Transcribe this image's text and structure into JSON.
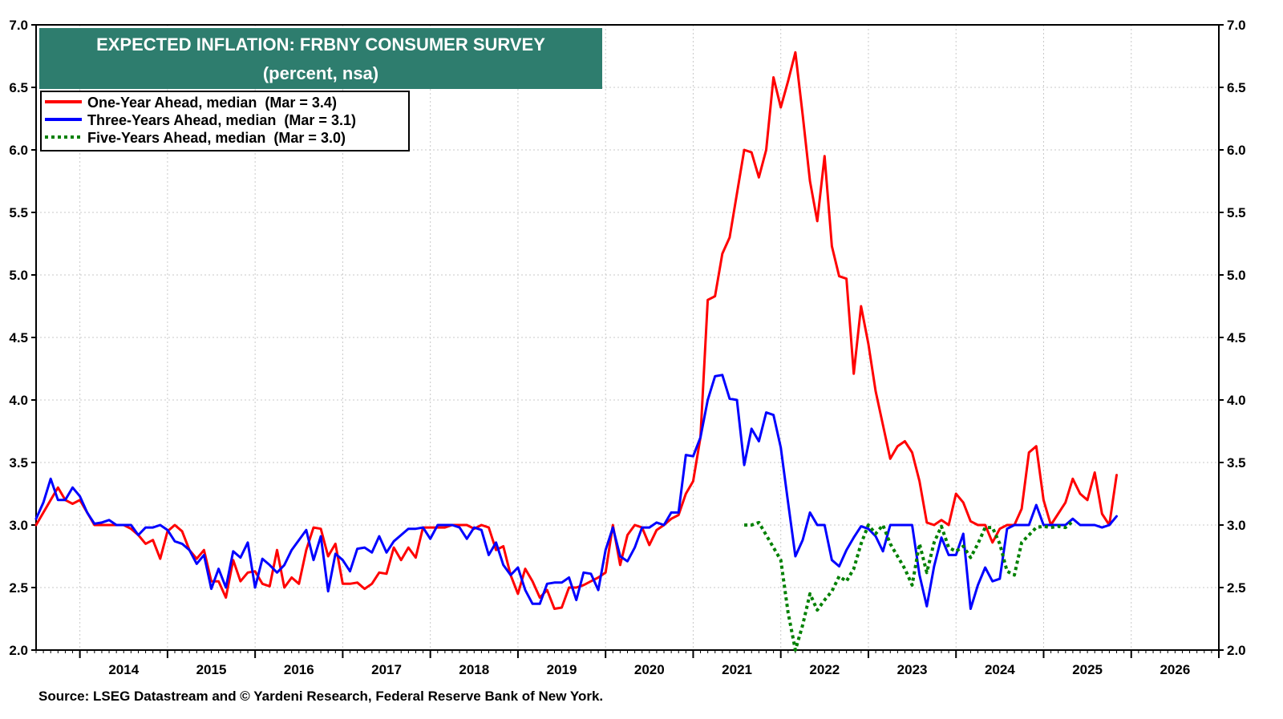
{
  "chart_data": {
    "type": "line",
    "title": "EXPECTED INFLATION: FRBNY CONSUMER SURVEY",
    "subtitle": "(percent, nsa)",
    "source": "Source: LSEG Datastream and © Yardeni Research, Federal Reserve Bank of New York.",
    "xlim": [
      2013.5,
      2027.0
    ],
    "ylim": [
      2.0,
      7.0
    ],
    "yticks": [
      "2.0",
      "2.5",
      "3.0",
      "3.5",
      "4.0",
      "4.5",
      "5.0",
      "5.5",
      "6.0",
      "6.5",
      "7.0"
    ],
    "xticks": [
      "2014",
      "2015",
      "2016",
      "2017",
      "2018",
      "2019",
      "2020",
      "2021",
      "2022",
      "2023",
      "2024",
      "2025",
      "2026"
    ],
    "grid": true,
    "legend_position": "top-left",
    "colors": {
      "title_bg": "#2e7d6e",
      "series1": "#ff0000",
      "series2": "#0000ff",
      "series3": "#008000"
    },
    "series": [
      {
        "name": "One-Year Ahead, median  (Mar = 3.4)",
        "style": "solid",
        "start": 2013.5,
        "step": 0.08333,
        "values": [
          3.0,
          3.1,
          3.2,
          3.3,
          3.2,
          3.17,
          3.2,
          3.1,
          3.0,
          3.0,
          3.0,
          3.0,
          3.0,
          2.97,
          2.92,
          2.85,
          2.88,
          2.73,
          2.95,
          3.0,
          2.95,
          2.8,
          2.73,
          2.8,
          2.55,
          2.55,
          2.42,
          2.72,
          2.55,
          2.62,
          2.63,
          2.53,
          2.51,
          2.8,
          2.5,
          2.58,
          2.53,
          2.8,
          2.98,
          2.97,
          2.75,
          2.85,
          2.53,
          2.53,
          2.54,
          2.49,
          2.53,
          2.62,
          2.61,
          2.82,
          2.72,
          2.82,
          2.74,
          2.98,
          2.98,
          2.98,
          2.98,
          3.0,
          3.0,
          3.0,
          2.97,
          3.0,
          2.98,
          2.8,
          2.83,
          2.6,
          2.45,
          2.65,
          2.55,
          2.42,
          2.48,
          2.33,
          2.34,
          2.5,
          2.5,
          2.52,
          2.55,
          2.58,
          2.62,
          3.0,
          2.68,
          2.92,
          3.0,
          2.98,
          2.84,
          2.96,
          3.0,
          3.05,
          3.08,
          3.25,
          3.35,
          3.7,
          4.8,
          4.83,
          5.17,
          5.3,
          5.65,
          6.0,
          5.98,
          5.78,
          6.0,
          6.58,
          6.34,
          6.55,
          6.78,
          6.28,
          5.75,
          5.43,
          5.95,
          5.23,
          4.99,
          4.97,
          4.21,
          4.75,
          4.45,
          4.07,
          3.8,
          3.53,
          3.63,
          3.67,
          3.58,
          3.35,
          3.02,
          3.0,
          3.04,
          3.0,
          3.25,
          3.18,
          3.03,
          3.0,
          3.0,
          2.86,
          2.97,
          3.0,
          3.0,
          3.13,
          3.58,
          3.63,
          3.2,
          3.0,
          3.09,
          3.18,
          3.37,
          3.25,
          3.2,
          3.42,
          3.09,
          3.0,
          3.4
        ]
      },
      {
        "name": "Three-Years Ahead, median  (Mar = 3.1)",
        "style": "solid",
        "start": 2013.5,
        "step": 0.08333,
        "values": [
          3.05,
          3.18,
          3.37,
          3.2,
          3.2,
          3.3,
          3.23,
          3.1,
          3.01,
          3.02,
          3.04,
          3.0,
          3.0,
          3.0,
          2.92,
          2.98,
          2.98,
          3.0,
          2.96,
          2.87,
          2.85,
          2.8,
          2.69,
          2.76,
          2.49,
          2.65,
          2.5,
          2.79,
          2.74,
          2.86,
          2.5,
          2.73,
          2.68,
          2.62,
          2.68,
          2.8,
          2.88,
          2.96,
          2.72,
          2.91,
          2.47,
          2.77,
          2.72,
          2.63,
          2.81,
          2.82,
          2.78,
          2.91,
          2.78,
          2.87,
          2.92,
          2.97,
          2.97,
          2.98,
          2.89,
          3.0,
          3.0,
          3.0,
          2.98,
          2.89,
          2.98,
          2.96,
          2.76,
          2.86,
          2.68,
          2.6,
          2.66,
          2.48,
          2.37,
          2.37,
          2.53,
          2.54,
          2.54,
          2.58,
          2.4,
          2.62,
          2.61,
          2.48,
          2.8,
          2.98,
          2.75,
          2.71,
          2.82,
          2.98,
          2.98,
          3.02,
          3.0,
          3.1,
          3.1,
          3.56,
          3.55,
          3.7,
          4.0,
          4.19,
          4.2,
          4.01,
          4.0,
          3.48,
          3.77,
          3.67,
          3.9,
          3.88,
          3.62,
          3.18,
          2.75,
          2.88,
          3.1,
          3.0,
          3.0,
          2.72,
          2.67,
          2.8,
          2.9,
          2.99,
          2.97,
          2.91,
          2.79,
          3.0,
          3.0,
          3.0,
          3.0,
          2.6,
          2.35,
          2.67,
          2.9,
          2.76,
          2.76,
          2.93,
          2.33,
          2.52,
          2.66,
          2.55,
          2.57,
          2.97,
          3.0,
          3.0,
          3.0,
          3.16,
          3.0,
          3.0,
          3.0,
          3.0,
          3.05,
          3.0,
          3.0,
          3.0,
          2.98,
          3.0,
          3.07
        ]
      },
      {
        "name": "Five-Years Ahead, median  (Mar = 3.0)",
        "style": "dotted",
        "start": 2021.583,
        "step": 0.08333,
        "values": [
          3.0,
          3.0,
          3.02,
          2.92,
          2.82,
          2.72,
          2.3,
          2.0,
          2.2,
          2.45,
          2.32,
          2.4,
          2.47,
          2.59,
          2.55,
          2.65,
          2.85,
          3.0,
          2.93,
          3.0,
          2.85,
          2.75,
          2.65,
          2.52,
          2.85,
          2.62,
          2.86,
          2.99,
          2.82,
          2.79,
          2.83,
          2.74,
          2.85,
          2.98,
          2.98,
          2.85,
          2.63,
          2.6,
          2.86,
          2.92,
          2.98,
          2.99,
          2.98,
          2.99,
          2.98,
          3.03
        ]
      }
    ]
  }
}
